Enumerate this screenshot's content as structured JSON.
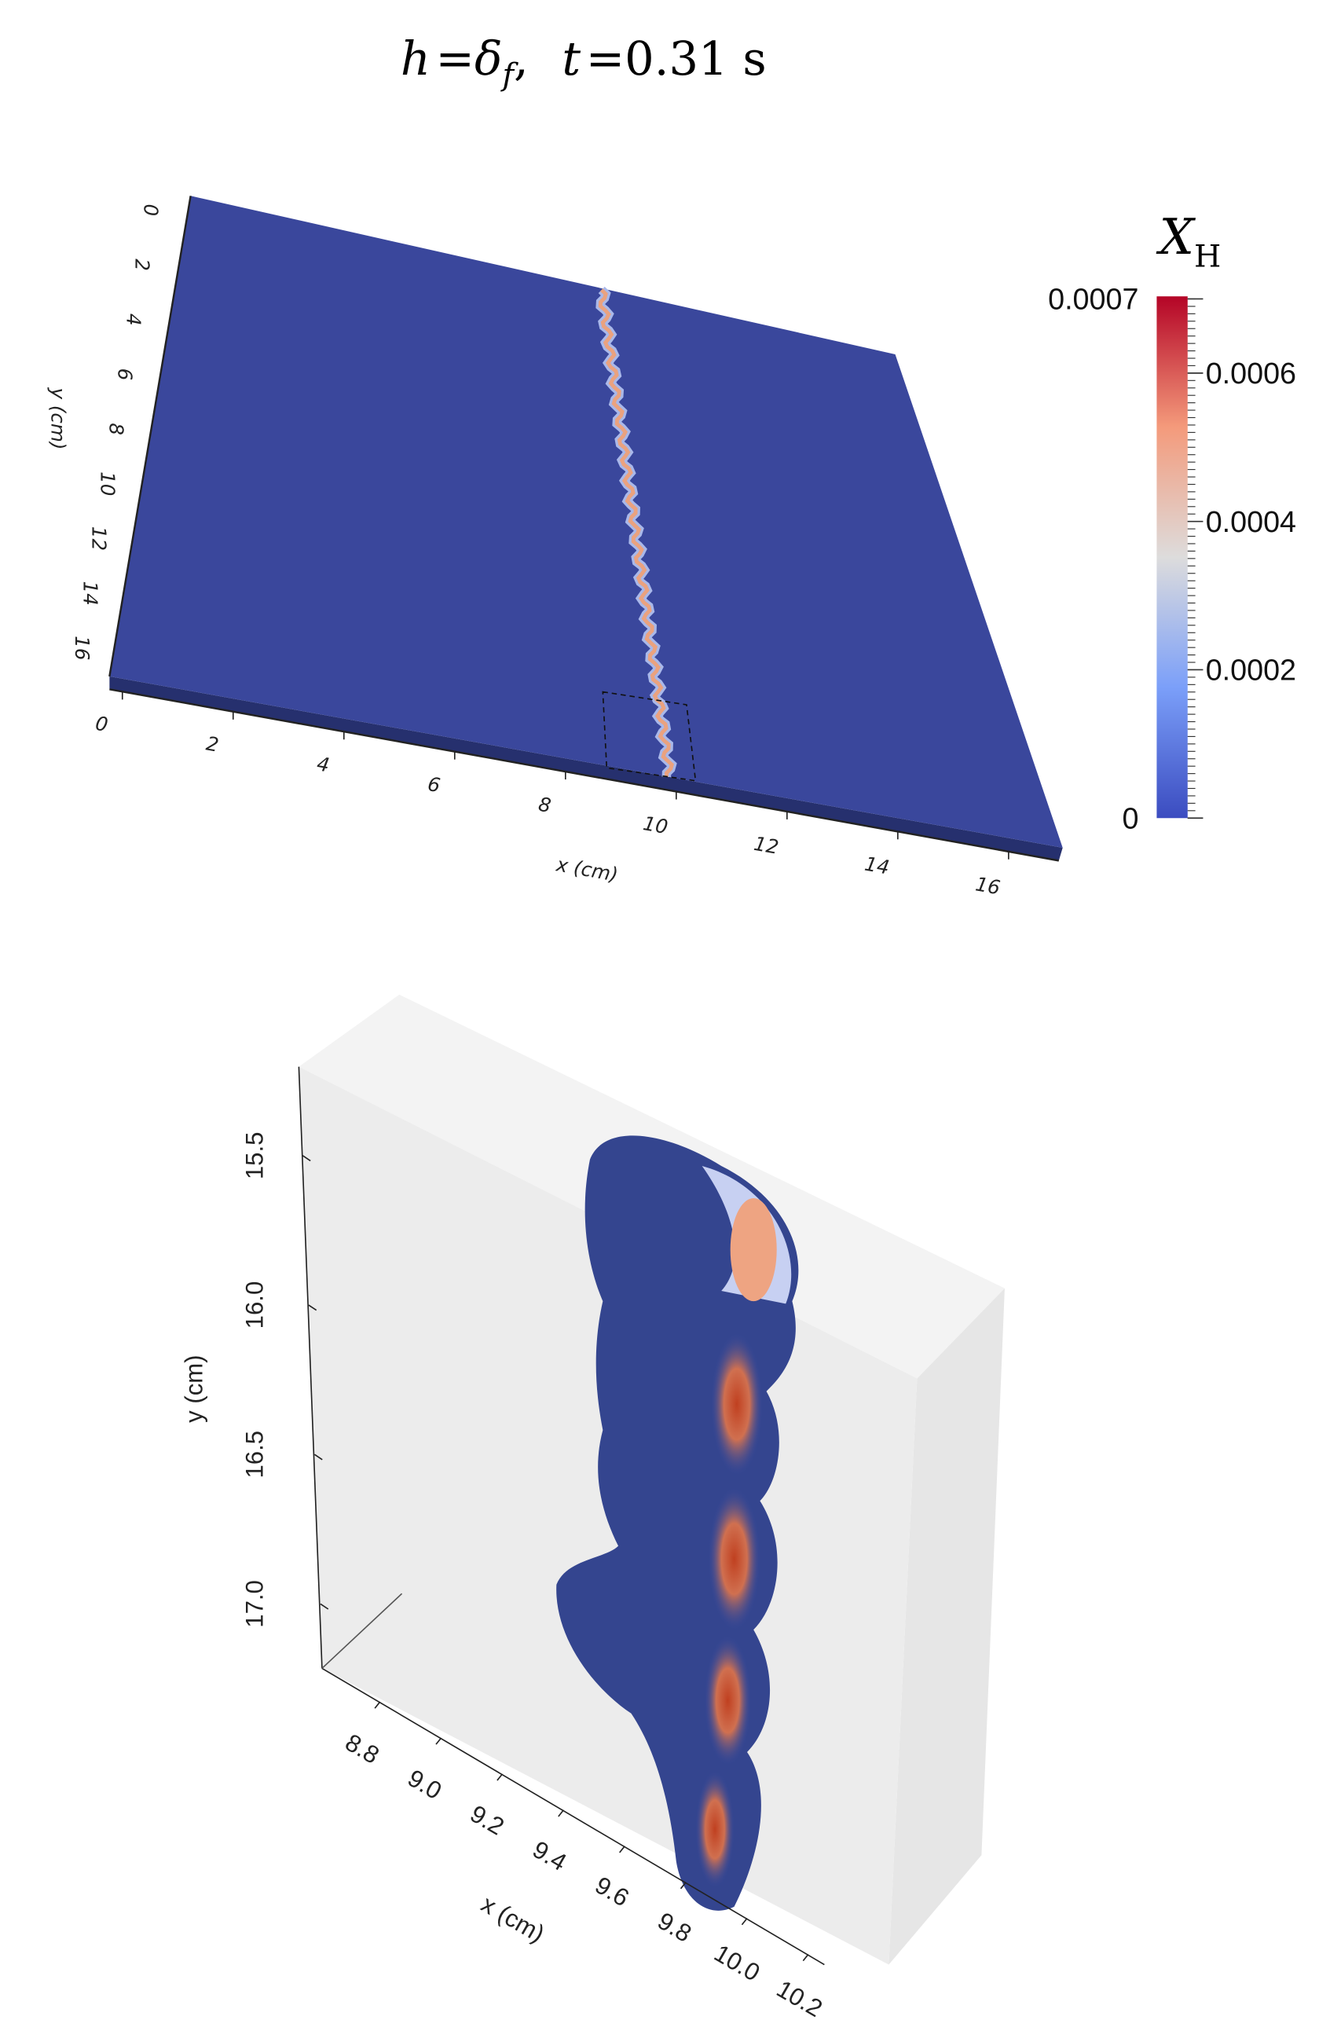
{
  "title": [
    "h",
    "=",
    "δ",
    "f",
    ",",
    "t",
    "=",
    "0.31 s"
  ],
  "top_view": {
    "x_label": "x (cm)",
    "y_label": "y (cm)",
    "x_ticks": [
      "0",
      "2",
      "4",
      "6",
      "8",
      "10",
      "12",
      "14",
      "16"
    ],
    "y_ticks": [
      "0",
      "2",
      "4",
      "6",
      "8",
      "10",
      "12",
      "14",
      "16"
    ]
  },
  "colorbar": {
    "label": "X",
    "label_sub": "H",
    "range": [
      0,
      0.0007
    ],
    "ticks": [
      0.0007,
      0.0006,
      0.0004,
      0.0002,
      0
    ]
  },
  "zoom_view": {
    "x_label": "x (cm)",
    "y_label": "y (cm)",
    "x_ticks": [
      "8.8",
      "9.0",
      "9.2",
      "9.4",
      "9.6",
      "9.8",
      "10.0",
      "10.2"
    ],
    "y_ticks": [
      "15.5",
      "16.0",
      "16.5",
      "17.0"
    ]
  }
}
